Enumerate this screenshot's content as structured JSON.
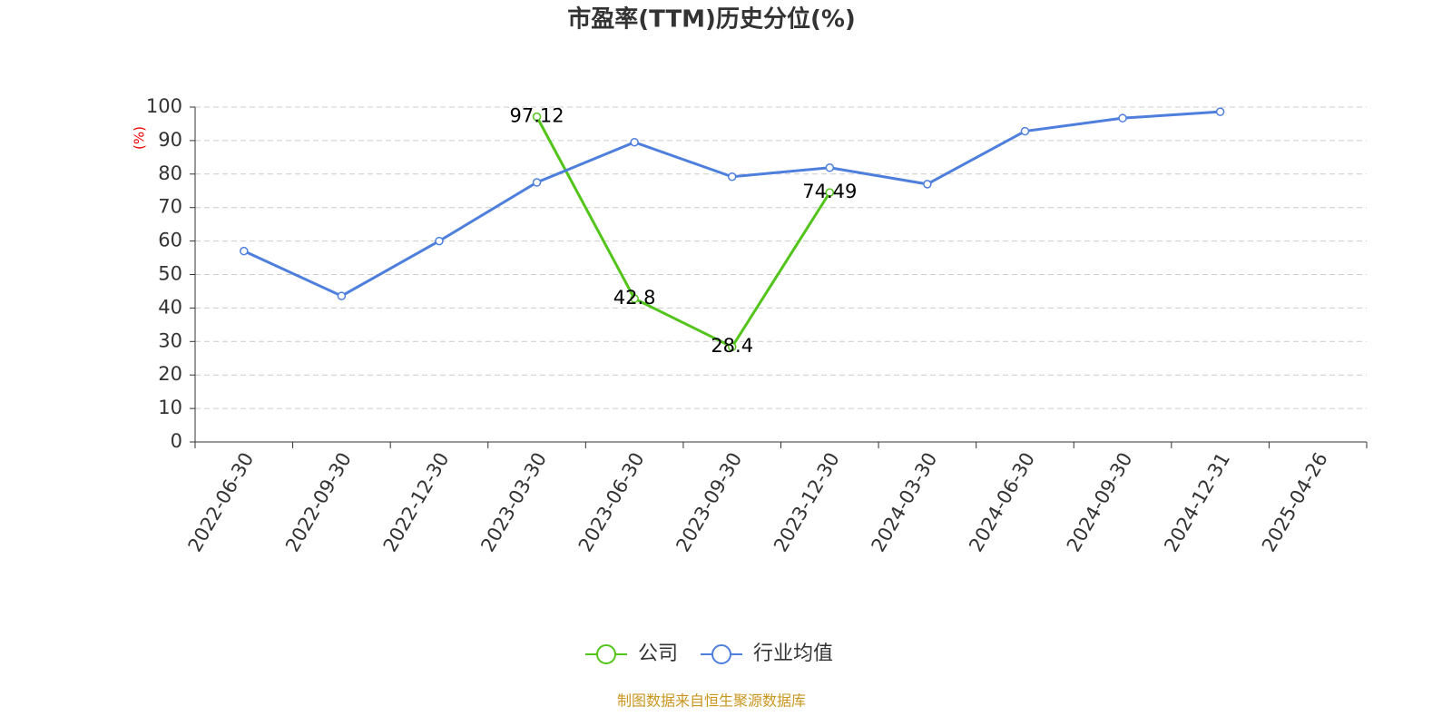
{
  "chart_data": {
    "type": "line",
    "title": "市盈率(TTM)历史分位(%)",
    "y_label": "(%)",
    "categories": [
      "2022-06-30",
      "2022-09-30",
      "2022-12-30",
      "2023-03-30",
      "2023-06-30",
      "2023-09-30",
      "2023-12-30",
      "2024-03-30",
      "2024-06-30",
      "2024-09-30",
      "2024-12-31",
      "2025-04-26"
    ],
    "series": [
      {
        "name": "公司",
        "color": "#52c41a",
        "labels": true,
        "values": [
          null,
          null,
          null,
          97.12,
          42.8,
          28.4,
          74.49,
          null,
          null,
          null,
          null,
          null
        ]
      },
      {
        "name": "行业均值",
        "color": "#4e7fdc",
        "labels": false,
        "values": [
          57,
          43.6,
          60,
          77.5,
          89.5,
          79.2,
          81.9,
          77,
          92.8,
          96.7,
          98.6,
          null
        ]
      }
    ],
    "ylim": [
      0,
      100
    ],
    "yticks": [
      0,
      10,
      20,
      30,
      40,
      50,
      60,
      70,
      80,
      90,
      100
    ],
    "grid": true,
    "legend": "bottom",
    "source": "制图数据来自恒生聚源数据库"
  }
}
